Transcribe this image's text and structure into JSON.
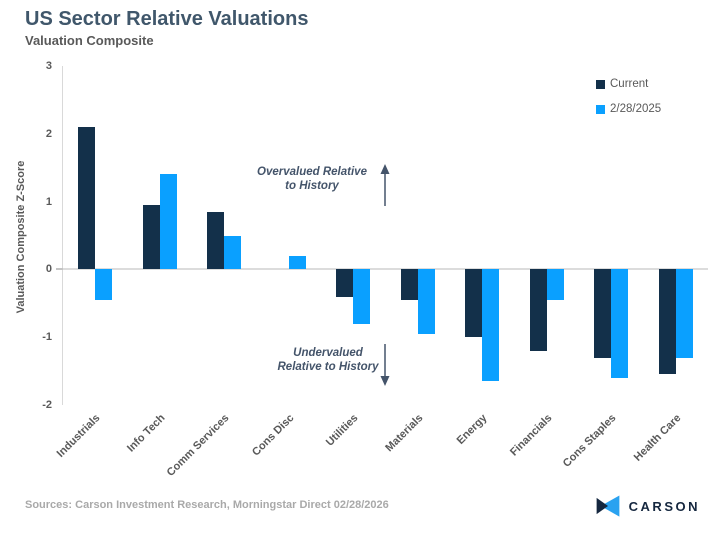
{
  "header": {
    "title": "US Sector Relative Valuations",
    "subtitle": "Valuation Composite"
  },
  "chart_data": {
    "type": "bar",
    "categories": [
      "Industrials",
      "Info Tech",
      "Comm Services",
      "Cons Disc",
      "Utilities",
      "Materials",
      "Energy",
      "Financials",
      "Cons Staples",
      "Health Care"
    ],
    "series": [
      {
        "name": "Current",
        "color": "#13304a",
        "values": [
          2.1,
          0.95,
          0.85,
          0,
          -0.4,
          -0.45,
          -1.0,
          -1.2,
          -1.3,
          -1.55
        ]
      },
      {
        "name": "2/28/2025",
        "color": "#0aa0ff",
        "values": [
          -0.45,
          1.4,
          0.5,
          0.2,
          -0.8,
          -0.95,
          -1.65,
          -0.45,
          -1.6,
          -1.3
        ]
      }
    ],
    "title": "US Sector Relative Valuations",
    "subtitle": "Valuation Composite",
    "xlabel": "",
    "ylabel": "Valuation Composite Z-Score",
    "ylim": [
      -2,
      3
    ],
    "yticks": [
      3,
      2,
      1,
      0,
      -1,
      -2
    ],
    "grid": "zero-line-only",
    "legend_position": "top-right"
  },
  "annotations": {
    "overvalued_line1": "Overvalued Relative",
    "overvalued_line2": "to History",
    "undervalued_line1": "Undervalued",
    "undervalued_line2": "Relative to History"
  },
  "footer": {
    "sources": "Sources: Carson Investment Research, Morningstar Direct 02/28/2026",
    "brand": "CARSON"
  },
  "colors": {
    "title_text": "#40576b",
    "axis_text": "#595959",
    "annotation_text": "#44546a",
    "series_current": "#13304a",
    "series_previous": "#0aa0ff",
    "gridline": "#dcdcdc",
    "sources_text": "#a9a9a9",
    "brand_navy": "#15273f",
    "brand_blue": "#2aa2f0"
  }
}
